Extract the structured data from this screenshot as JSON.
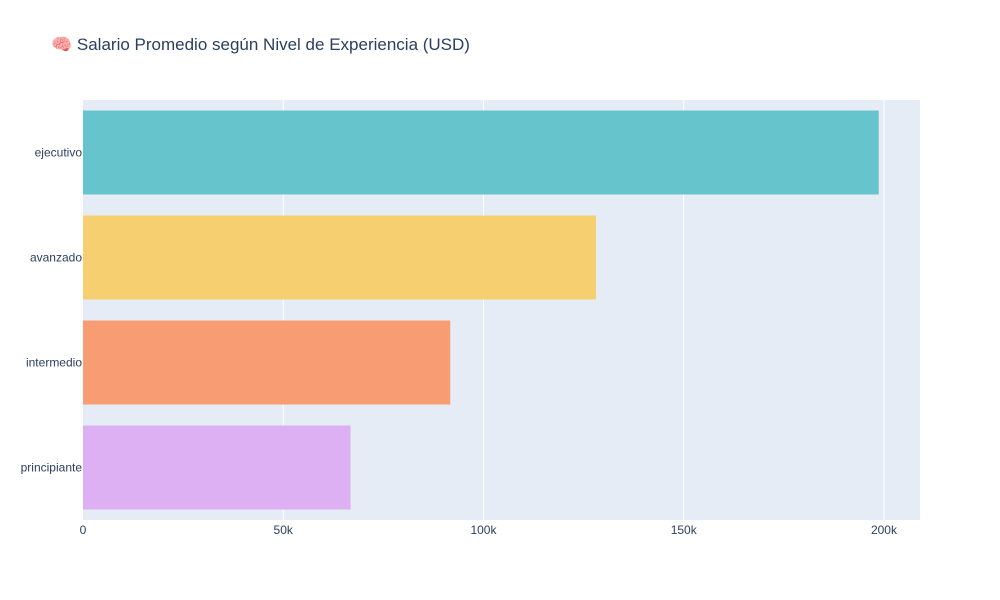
{
  "chart_data": {
    "type": "bar",
    "orientation": "horizontal",
    "title": "🧠 Salario Promedio según Nivel de Experiencia (USD)",
    "xlabel": "",
    "ylabel": "",
    "categories": [
      "ejecutivo",
      "avanzado",
      "intermedio",
      "principiante"
    ],
    "values": [
      198700,
      128100,
      91700,
      66800
    ],
    "colors": [
      "#66c5cc",
      "#f6cf71",
      "#f89c74",
      "#dcb0f2"
    ],
    "xlim": [
      0,
      209000
    ],
    "xticks": [
      0,
      50000,
      100000,
      150000,
      200000
    ],
    "xtick_labels": [
      "0",
      "50k",
      "100k",
      "150k",
      "200k"
    ],
    "grid": true,
    "plot_background": "#e5ecf6",
    "gridline_color": "#ffffff",
    "text_color": "#2a3f5f"
  }
}
